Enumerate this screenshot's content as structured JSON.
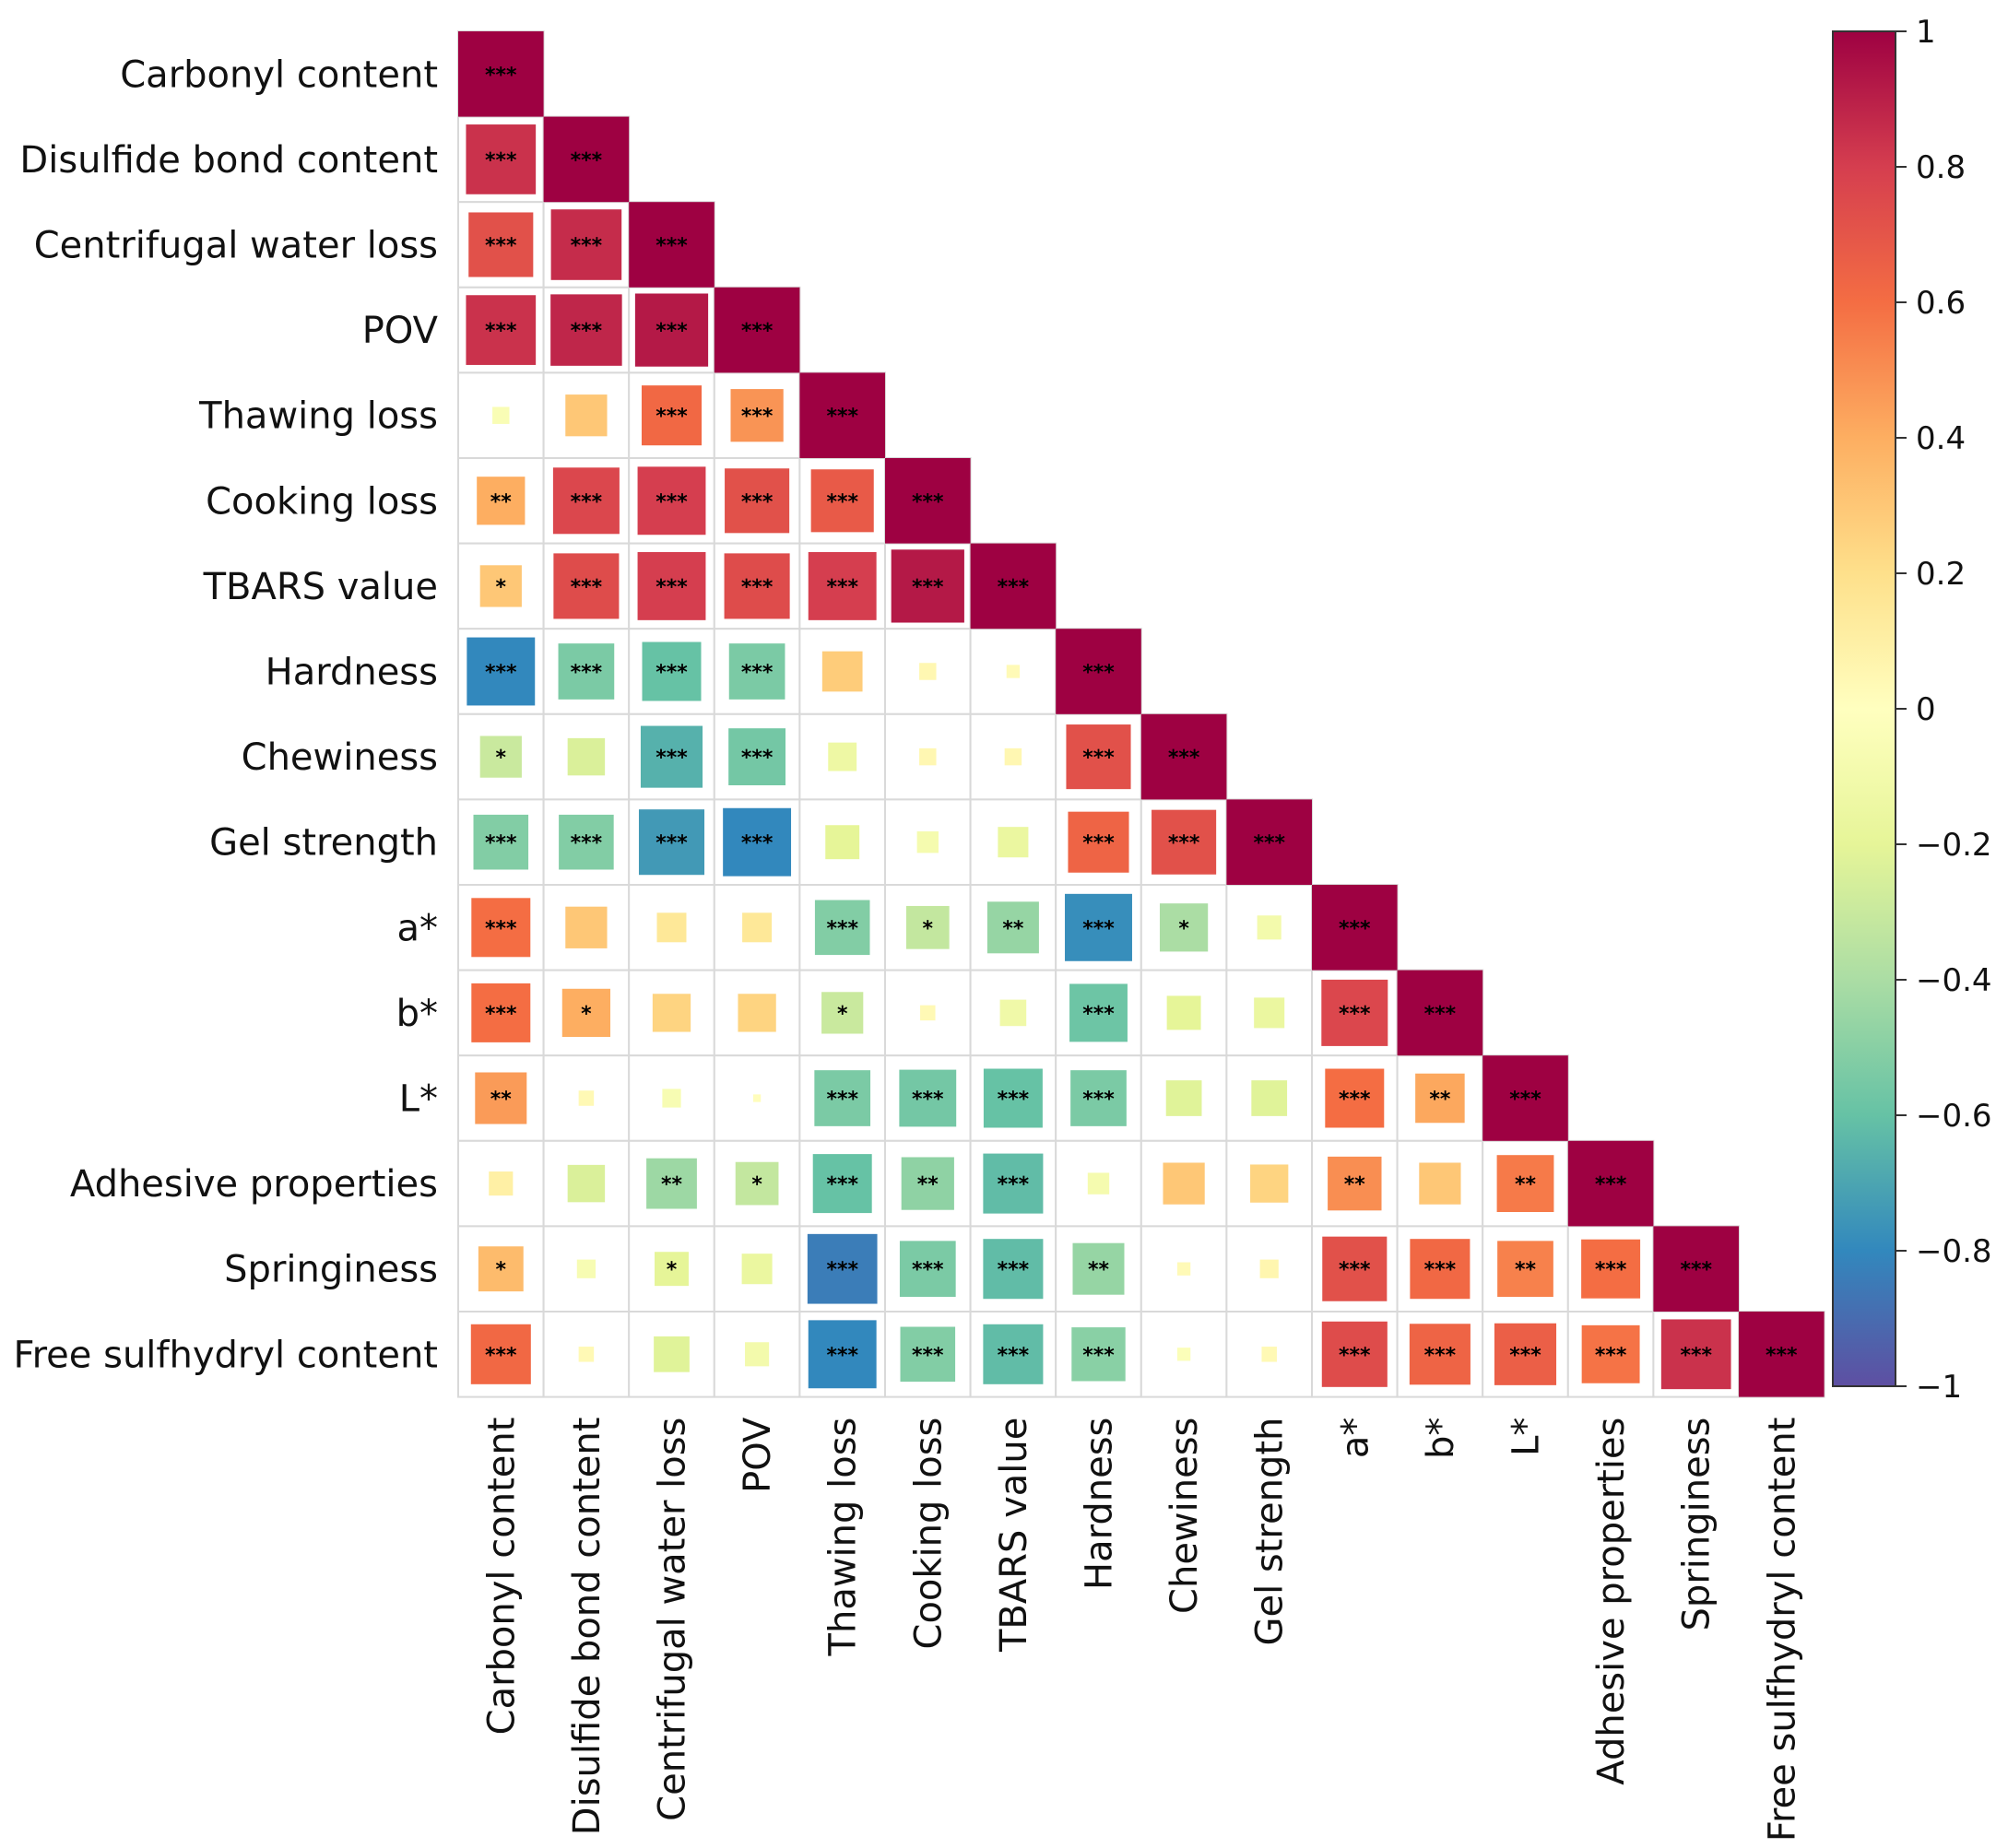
{
  "chart_data": {
    "type": "heatmap",
    "title": "",
    "variables": [
      "Carbonyl content",
      "Disulfide bond content",
      "Centrifugal water loss",
      "POV",
      "Thawing loss",
      "Cooking loss",
      "TBARS value",
      "Hardness",
      "Chewiness",
      "Gel strength",
      "a*",
      "b*",
      "L*",
      "Adhesive properties",
      "Springiness",
      "Free sulfhydryl content"
    ],
    "lower_triangle_values": [
      [
        1.0
      ],
      [
        0.84,
        1.0
      ],
      [
        0.72,
        0.86,
        1.0
      ],
      [
        0.84,
        0.88,
        0.92,
        1.0
      ],
      [
        -0.05,
        0.3,
        0.62,
        0.48,
        1.0
      ],
      [
        0.4,
        0.76,
        0.8,
        0.72,
        0.68,
        1.0
      ],
      [
        0.3,
        0.74,
        0.8,
        0.74,
        0.8,
        0.92,
        1.0
      ],
      [
        -0.8,
        -0.54,
        -0.6,
        -0.54,
        0.28,
        0.05,
        0.03,
        1.0
      ],
      [
        -0.3,
        -0.24,
        -0.66,
        -0.56,
        -0.14,
        0.05,
        0.05,
        0.72,
        1.0
      ],
      [
        -0.52,
        -0.52,
        -0.74,
        -0.8,
        -0.2,
        -0.08,
        -0.16,
        0.64,
        0.72,
        1.0
      ],
      [
        0.6,
        0.3,
        0.15,
        0.15,
        -0.52,
        -0.32,
        -0.46,
        -0.78,
        -0.4,
        -0.1,
        1.0
      ],
      [
        0.6,
        0.4,
        0.25,
        0.25,
        -0.3,
        0.04,
        -0.12,
        -0.58,
        -0.2,
        -0.16,
        0.76,
        1.0
      ],
      [
        0.46,
        0.04,
        -0.06,
        0.01,
        -0.54,
        -0.56,
        -0.6,
        -0.54,
        -0.22,
        -0.22,
        0.6,
        0.42,
        1.0
      ],
      [
        0.1,
        -0.24,
        -0.44,
        -0.32,
        -0.6,
        -0.48,
        -0.62,
        -0.08,
        0.3,
        0.25,
        0.5,
        0.3,
        0.56,
        1.0
      ],
      [
        0.35,
        -0.06,
        -0.2,
        -0.16,
        -0.84,
        -0.54,
        -0.62,
        -0.46,
        0.03,
        0.06,
        0.72,
        0.62,
        0.54,
        0.6,
        1.0
      ],
      [
        0.62,
        0.04,
        -0.22,
        -0.1,
        -0.8,
        -0.52,
        -0.62,
        -0.5,
        -0.03,
        0.04,
        0.74,
        0.64,
        0.66,
        0.58,
        0.84,
        1.0
      ]
    ],
    "significance": [
      [
        "***"
      ],
      [
        "***",
        "***"
      ],
      [
        "***",
        "***",
        "***"
      ],
      [
        "***",
        "***",
        "***",
        "***"
      ],
      [
        "",
        "",
        "***",
        "***",
        "***"
      ],
      [
        "**",
        "***",
        "***",
        "***",
        "***",
        "***"
      ],
      [
        "*",
        "***",
        "***",
        "***",
        "***",
        "***",
        "***"
      ],
      [
        "***",
        "***",
        "***",
        "***",
        "",
        "",
        "",
        "***"
      ],
      [
        "*",
        "",
        "***",
        "***",
        "",
        "",
        "",
        "***",
        "***"
      ],
      [
        "***",
        "***",
        "***",
        "***",
        "",
        "",
        "",
        "***",
        "***",
        "***"
      ],
      [
        "***",
        "",
        "",
        "",
        "***",
        "*",
        "**",
        "***",
        "*",
        "",
        "***"
      ],
      [
        "***",
        "*",
        "",
        "",
        "*",
        "",
        "",
        "***",
        "",
        "",
        "***",
        "***"
      ],
      [
        "**",
        "",
        "",
        "",
        "***",
        "***",
        "***",
        "***",
        "",
        "",
        "***",
        "**",
        "***"
      ],
      [
        "",
        "",
        "**",
        "*",
        "***",
        "**",
        "***",
        "",
        "",
        "",
        "**",
        "",
        "**",
        "***"
      ],
      [
        "*",
        "",
        "*",
        "",
        "***",
        "***",
        "***",
        "**",
        "",
        "",
        "***",
        "***",
        "**",
        "***",
        "***"
      ],
      [
        "***",
        "",
        "",
        "",
        "***",
        "***",
        "***",
        "***",
        "",
        "",
        "***",
        "***",
        "***",
        "***",
        "***",
        "***"
      ]
    ],
    "colorbar": {
      "min": -1,
      "max": 1,
      "ticks": [
        1,
        0.8,
        0.6,
        0.4,
        0.2,
        0,
        -0.2,
        -0.4,
        -0.6,
        -0.8,
        -1
      ],
      "tick_labels": [
        "1",
        "0.8",
        "0.6",
        "0.4",
        "0.2",
        "0",
        "−0.2",
        "−0.4",
        "−0.6",
        "−0.8",
        "−1"
      ]
    },
    "colors": {
      "palette": [
        "#5e4fa2",
        "#3288bd",
        "#66c2a5",
        "#abdda4",
        "#e6f598",
        "#ffffbf",
        "#fee08b",
        "#fdae61",
        "#f46d43",
        "#d53e4f",
        "#9e0142"
      ],
      "grid_line": "#d9d9d9"
    }
  }
}
